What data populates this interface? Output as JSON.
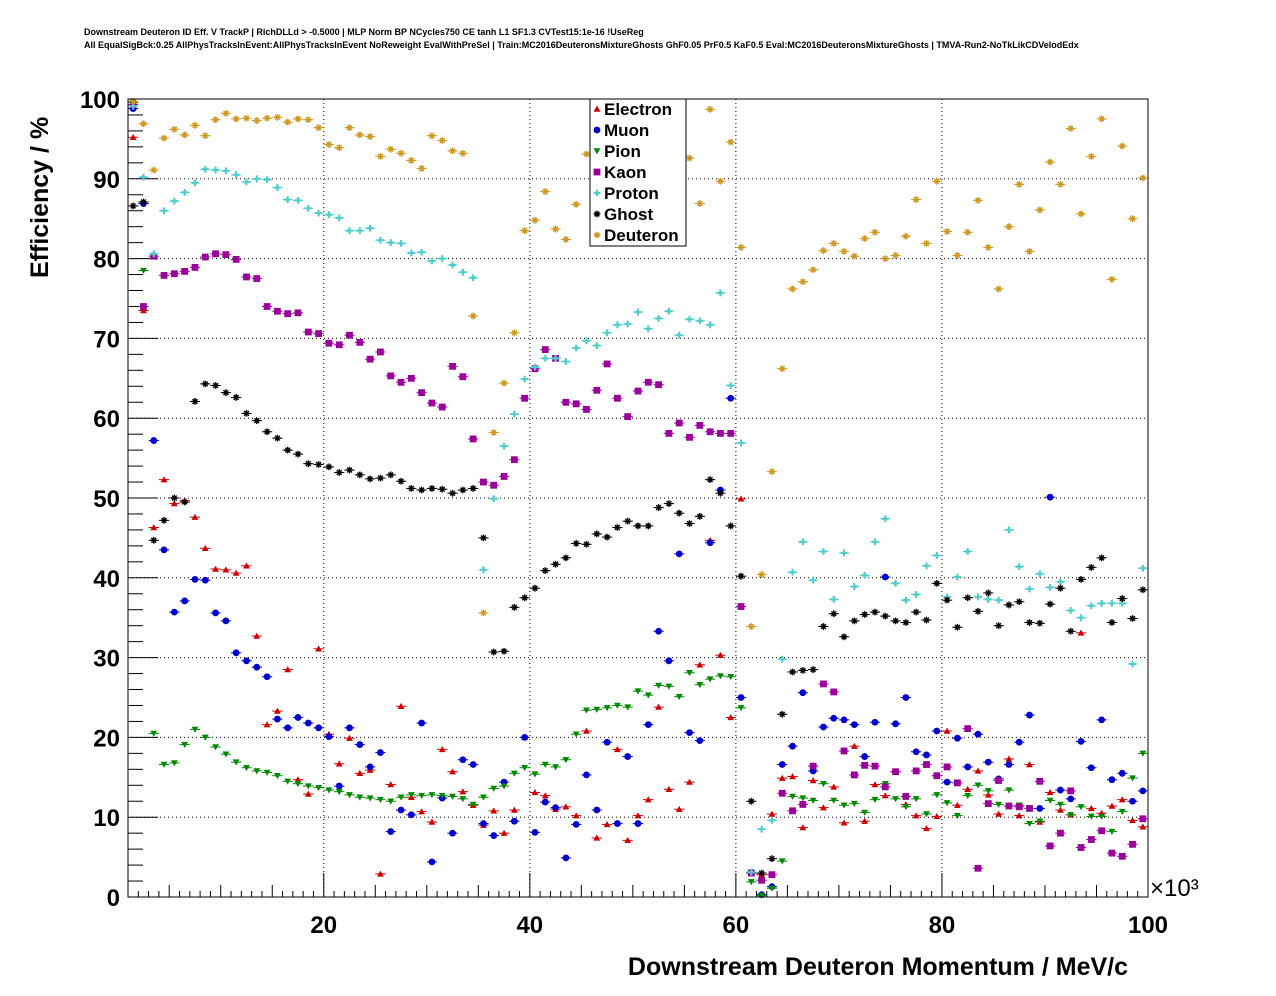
{
  "header": {
    "title_line1": "Downstream Deuteron ID Eff. V TrackP | RichDLLd > -0.5000 | MLP Norm BP NCycles750 CE tanh L1 SF1.3 CVTest15:1e-16 !UseReg",
    "title_line2": "All EqualSigBck:0.25 AllPhysTracksInEvent:AllPhysTracksInEvent NoReweight EvalWithPreSel | Train:MC2016DeuteronsMixtureGhosts GhF0.05 PrF0.5 KaF0.5 Eval:MC2016DeuteronsMixtureGhosts | TMVA-Run2-NoTkLikCDVelodEdx"
  },
  "chart_data": {
    "type": "scatter",
    "title": "Downstream Deuteron ID Eff. V TrackP | RichDLLd > -0.5000 | MLP Norm BP NCycles750 CE tanh L1 SF1.3 CVTest15:1e-16 !UseReg",
    "xlabel": "Downstream Deuteron Momentum / MeV/c",
    "ylabel": "Efficiency / %",
    "x_multiplier_label": "×10³",
    "xlim": [
      1,
      100
    ],
    "ylim": [
      0,
      100
    ],
    "x_units_multiplier": 1000,
    "x_ticks": [
      20,
      40,
      60,
      80,
      100
    ],
    "y_ticks": [
      0,
      10,
      20,
      30,
      40,
      50,
      60,
      70,
      80,
      90,
      100
    ],
    "grid": true,
    "legend_position": "top-center",
    "x": [
      1.5,
      2.5,
      3.5,
      4.5,
      5.5,
      6.5,
      7.5,
      8.5,
      9.5,
      10.5,
      11.5,
      12.5,
      13.5,
      14.5,
      15.5,
      16.5,
      17.5,
      18.5,
      19.5,
      20.5,
      21.5,
      22.5,
      23.5,
      24.5,
      25.5,
      26.5,
      27.5,
      28.5,
      29.5,
      30.5,
      31.5,
      32.5,
      33.5,
      34.5,
      35.5,
      36.5,
      37.5,
      38.5,
      39.5,
      40.5,
      41.5,
      42.5,
      43.5,
      44.5,
      45.5,
      46.5,
      47.5,
      48.5,
      49.5,
      50.5,
      51.5,
      52.5,
      53.5,
      54.5,
      55.5,
      56.5,
      57.5,
      58.5,
      59.5,
      60.5,
      61.5,
      62.5,
      63.5,
      64.5,
      65.5,
      66.5,
      67.5,
      68.5,
      69.5,
      70.5,
      71.5,
      72.5,
      73.5,
      74.5,
      75.5,
      76.5,
      77.5,
      78.5,
      79.5,
      80.5,
      81.5,
      82.5,
      83.5,
      84.5,
      85.5,
      86.5,
      87.5,
      88.5,
      89.5,
      90.5,
      91.5,
      92.5,
      93.5,
      94.5,
      95.5,
      96.5,
      97.5,
      98.5,
      99.5
    ],
    "series": [
      {
        "name": "Electron",
        "color": "#cc0000",
        "marker": "triangle-up",
        "values": [
          95.2,
          73.5,
          46.3,
          52.3,
          49.3,
          49.7,
          47.6,
          43.7,
          41.1,
          41,
          40.6,
          41.5,
          32.7,
          21.6,
          23.3,
          28.5,
          14.7,
          12.9,
          31.1,
          20.4,
          16.7,
          19.9,
          15.5,
          15.9,
          2.9,
          14.1,
          23.9,
          12.5,
          10.7,
          9.4,
          18.5,
          15.7,
          13.2,
          11.5,
          9,
          10.8,
          8,
          10.9,
          20,
          13.1,
          12.7,
          11,
          11.3,
          10.2,
          20.8,
          7.4,
          9.1,
          18.5,
          7.1,
          10.2,
          12.2,
          23.8,
          13.5,
          11,
          14.4,
          29.1,
          44.7,
          30.3,
          22.5,
          49.9,
          3,
          2.8,
          10.4,
          14.9,
          15.1,
          8.7,
          14.6,
          11.2,
          13.8,
          9.3,
          18.9,
          9.5,
          14.1,
          12.7,
          15.7,
          11.6,
          10.2,
          8.6,
          10.1,
          20.8,
          11.5,
          13.5,
          15.8,
          12.8,
          10.4,
          17.3,
          10.2,
          16.6,
          9.4,
          13.1,
          10.9,
          10.3,
          33.1,
          11.1,
          10.5,
          11.4,
          12.2,
          9.6,
          8.8
        ]
      },
      {
        "name": "Muon",
        "color": "#0000cc",
        "marker": "circle",
        "values": [
          98.8,
          86.9,
          57.2,
          43.5,
          35.7,
          37.1,
          39.8,
          39.7,
          35.6,
          34.6,
          30.6,
          29.6,
          28.8,
          27.6,
          22.3,
          21.2,
          22.5,
          21.8,
          21.2,
          20.1,
          13.9,
          21.2,
          19.1,
          16.3,
          18.1,
          8.2,
          10.9,
          10.3,
          21.8,
          4.4,
          12.4,
          8,
          17.2,
          16.6,
          9.2,
          7.7,
          14.4,
          9.5,
          20,
          8.1,
          11.9,
          11.2,
          4.9,
          9.1,
          15.3,
          10.9,
          19.4,
          9.2,
          17.6,
          9.2,
          21.6,
          33.3,
          29.6,
          43,
          20.6,
          19.6,
          44.4,
          51,
          62.5,
          25,
          3.1,
          0.3,
          1.3,
          16.6,
          18.9,
          25.6,
          15.8,
          21.3,
          22.4,
          22.2,
          21.6,
          17.6,
          21.9,
          40.1,
          21.7,
          25,
          18.2,
          17.8,
          20.8,
          14.4,
          19.9,
          16.3,
          20.4,
          16.9,
          14.8,
          16.6,
          19.4,
          22.8,
          11.1,
          50.1,
          13.4,
          12.3,
          19.5,
          16.2,
          22.2,
          14.7,
          15.5,
          12,
          13.3
        ]
      },
      {
        "name": "Pion",
        "color": "#008800",
        "marker": "triangle-down",
        "values": [
          99.6,
          78.5,
          20.5,
          16.6,
          16.8,
          19.1,
          21,
          20,
          18.8,
          17.9,
          16.9,
          16.2,
          15.8,
          15.6,
          15.2,
          14.5,
          14.2,
          13.9,
          13.7,
          13.4,
          13.2,
          12.8,
          12.5,
          12.4,
          12.2,
          12,
          12.5,
          12.8,
          12.7,
          12.8,
          12.7,
          12.6,
          12.3,
          11.6,
          12.5,
          13.6,
          13.9,
          15.5,
          16.2,
          15.4,
          16.6,
          16.3,
          17.2,
          20.4,
          23.4,
          23.5,
          23.7,
          24,
          23.8,
          25.8,
          25.3,
          26.5,
          26.4,
          25.1,
          28.1,
          26.6,
          27.3,
          27.7,
          27.6,
          23.7,
          1.9,
          0.2,
          1.1,
          4.5,
          12.6,
          12.4,
          12.1,
          14.2,
          12.1,
          11.5,
          11.7,
          10.6,
          12.2,
          14.2,
          12.3,
          11.3,
          12.3,
          10.4,
          12.8,
          11.8,
          10.2,
          12.7,
          14,
          13.3,
          11.6,
          13.4,
          11.5,
          9.2,
          9.5,
          12.1,
          11.6,
          10.3,
          11.3,
          10.1,
          10.1,
          8.2,
          10.7,
          14.9,
          18
        ]
      },
      {
        "name": "Kaon",
        "color": "#990099",
        "marker": "square",
        "values": [
          99.3,
          74,
          80.3,
          77.9,
          78.1,
          78.4,
          78.9,
          80.2,
          80.6,
          80.5,
          79.9,
          77.7,
          77.5,
          74,
          73.4,
          73.1,
          73.2,
          70.8,
          70.6,
          69.4,
          69.2,
          70.4,
          69.5,
          67.4,
          68.3,
          65.3,
          64.5,
          65,
          63.2,
          61.9,
          61.4,
          66.5,
          65.2,
          57.4,
          52,
          51.6,
          52.7,
          54.8,
          62.5,
          66.2,
          68.6,
          67.5,
          62,
          61.8,
          61.1,
          63.5,
          66.8,
          62.5,
          60.2,
          63.4,
          64.5,
          64.2,
          58.1,
          59.4,
          57.6,
          59.1,
          58.3,
          58.1,
          58.1,
          36.4,
          3,
          2.1,
          2.8,
          13,
          10.8,
          11.6,
          16.4,
          26.7,
          25.7,
          18.3,
          15.3,
          16.5,
          16.4,
          13.8,
          15.7,
          12.6,
          15.8,
          16.6,
          15.2,
          16.3,
          14.3,
          21.1,
          3.6,
          11.7,
          14.6,
          11.4,
          11.3,
          11.1,
          14.5,
          6.4,
          8,
          13.3,
          6.2,
          7.2,
          8.3,
          5.5,
          5.1,
          6.6,
          9.8
        ]
      },
      {
        "name": "Proton",
        "color": "#55cccc",
        "marker": "cross",
        "values": [
          99.1,
          90.2,
          80.6,
          86,
          87.2,
          88.3,
          89.5,
          91.2,
          91.1,
          91,
          90.5,
          89.6,
          90,
          89.9,
          88.9,
          87.4,
          87.3,
          86.3,
          85.7,
          85.5,
          85.1,
          83.5,
          83.5,
          83.8,
          82.3,
          82,
          81.9,
          80.7,
          80.8,
          79.7,
          80,
          79.2,
          78.3,
          77.6,
          41,
          49.9,
          56.5,
          60.5,
          64.9,
          66.4,
          67.5,
          67.5,
          67.1,
          68.8,
          69.7,
          69.1,
          70.7,
          71.7,
          71.8,
          73.3,
          71.2,
          72.5,
          73.4,
          70.4,
          72.4,
          72.2,
          71.7,
          75.7,
          64.1,
          56.9,
          3.1,
          8.5,
          9.6,
          29.8,
          40.7,
          44.5,
          39.7,
          43.3,
          37.3,
          43.1,
          38.9,
          40.3,
          44.5,
          47.4,
          39.3,
          37.2,
          37.9,
          41.5,
          42.8,
          37.6,
          40.1,
          43.3,
          37.6,
          37.3,
          37.2,
          46,
          41.4,
          38.6,
          40.5,
          38.8,
          39.5,
          35.9,
          35,
          36.5,
          36.8,
          36.8,
          36.8,
          29.2,
          41.2
        ]
      },
      {
        "name": "Ghost",
        "color": "#000000",
        "marker": "star",
        "values": [
          86.6,
          87.1,
          44.7,
          47.2,
          50,
          49.5,
          62.1,
          64.3,
          64.1,
          63.2,
          62.6,
          60.6,
          59.7,
          58.3,
          57.5,
          56,
          55.5,
          54.3,
          54.2,
          53.9,
          53.2,
          53.5,
          52.9,
          52.4,
          52.5,
          52.9,
          52.1,
          51.2,
          51,
          51.2,
          51.1,
          50.6,
          51,
          51.2,
          45,
          30.7,
          30.8,
          36.3,
          37.5,
          38.7,
          40.9,
          41.7,
          42.5,
          44.3,
          44.2,
          45.5,
          45.1,
          46.3,
          47.1,
          46.5,
          46.5,
          48.8,
          49.3,
          48.1,
          46.8,
          47.7,
          52.3,
          50.6,
          46.5,
          40.2,
          12,
          3,
          4.8,
          22.9,
          28.2,
          28.4,
          28.5,
          33.9,
          35.5,
          32.6,
          34.6,
          35.4,
          35.7,
          35.2,
          34.6,
          34.4,
          35.7,
          34.7,
          39.3,
          37.2,
          33.8,
          37.5,
          35.8,
          38.1,
          34,
          36.6,
          37,
          34.4,
          34.3,
          36.7,
          38.7,
          33.3,
          39.8,
          41.3,
          42.5,
          34.4,
          37.4,
          34.9,
          38.5
        ]
      },
      {
        "name": "Deuteron",
        "color": "#cc9922",
        "marker": "star",
        "values": [
          99.7,
          96.9,
          91.1,
          95.1,
          96.2,
          95.5,
          96.7,
          95.4,
          97.4,
          98.2,
          97.5,
          97.6,
          97.3,
          97.6,
          97.7,
          97.1,
          97.5,
          97.4,
          96.4,
          94.3,
          93.9,
          96.4,
          95.5,
          95.3,
          92.8,
          93.7,
          93.2,
          92.3,
          91.3,
          95.4,
          94.8,
          93.5,
          93.2,
          72.8,
          35.6,
          58.2,
          64.4,
          70.7,
          83.5,
          84.8,
          88.4,
          83.7,
          82.4,
          86.8,
          93.1,
          93.4,
          95.7,
          89.6,
          91.4,
          97.3,
          93.8,
          90.8,
          94.2,
          87.2,
          92.6,
          86.9,
          98.7,
          89.7,
          94.6,
          81.4,
          33.9,
          40.4,
          53.3,
          66.2,
          76.2,
          77.1,
          78.6,
          81,
          81.9,
          80.9,
          80.3,
          82.5,
          83.3,
          80,
          80.4,
          82.8,
          87.4,
          81.9,
          89.7,
          83.4,
          80.4,
          83.3,
          87.3,
          81.4,
          76.2,
          84,
          89.3,
          80.9,
          86.1,
          92.1,
          89.3,
          96.3,
          85.6,
          92.8,
          97.5,
          77.4,
          94.1,
          85,
          90.1
        ]
      }
    ]
  }
}
